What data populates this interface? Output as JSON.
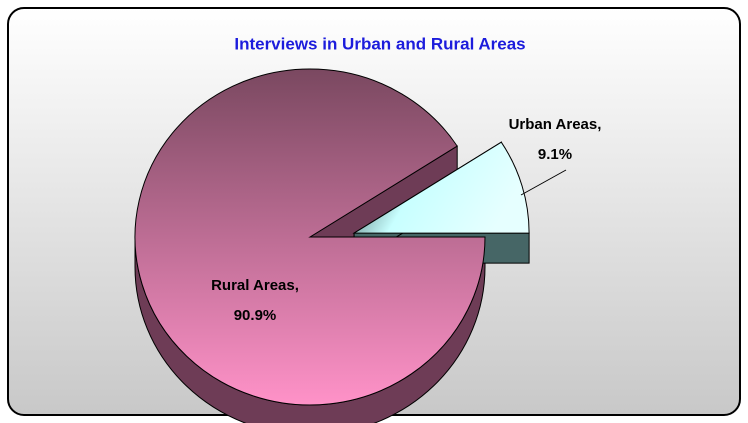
{
  "chart_data": {
    "type": "pie",
    "title": "Interviews in Urban and Rural Areas",
    "categories": [
      "Urban Areas,",
      "Rural Areas,"
    ],
    "values": [
      9.1,
      90.9
    ],
    "value_labels": [
      "9.1%",
      "90.9%"
    ],
    "colors": [
      "#d8ffff",
      "#e08ab8"
    ]
  }
}
